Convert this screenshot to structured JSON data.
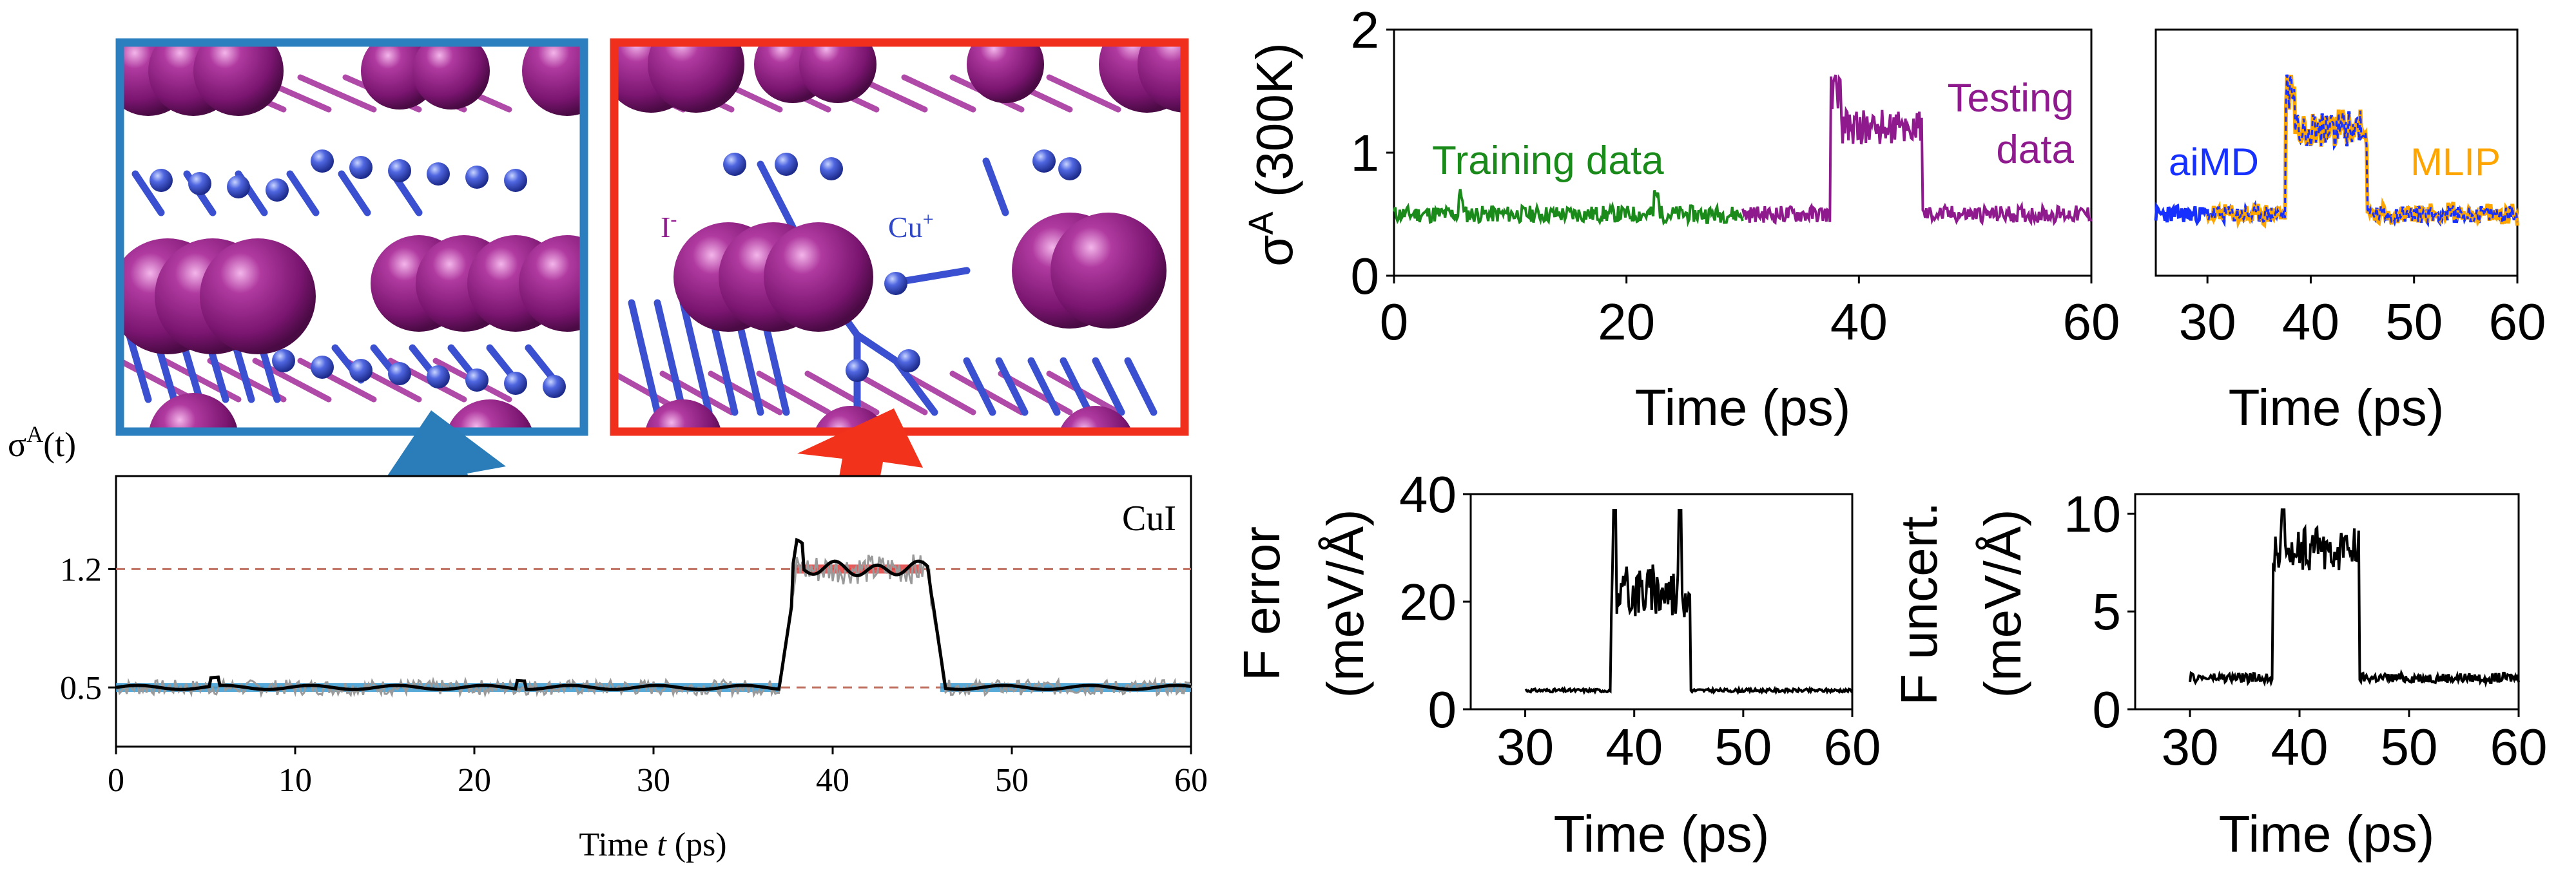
{
  "colors": {
    "blue_frame": "#2b7fbf",
    "red_frame": "#f0301c",
    "blue_arrow": "#2a7db8",
    "red_arrow": "#f2321b",
    "training": "#1a8a1a",
    "testing": "#8e1a8e",
    "aimd": "#1530ff",
    "mlip": "#ffa500",
    "refline": "#c07060",
    "band_blue": "#3a9bd0",
    "band_red": "#e04040",
    "atom_i": "#8a1a7a",
    "atom_cu": "#3048c8"
  },
  "structure_panels": {
    "left": {
      "labels": []
    },
    "right": {
      "label_i": "I",
      "label_i_sup": "-",
      "label_cu": "Cu",
      "label_cu_sup": "+"
    }
  },
  "chart_data": [
    {
      "id": "cui_sigma",
      "type": "line",
      "ylabel_main": "σ",
      "ylabel_sup": "A",
      "ylabel_tail": "(t)",
      "xlabel_pre": "Time ",
      "xlabel_var": "t",
      "xlabel_post": " (ps)",
      "annotation": "CuI",
      "xlim": [
        0,
        60
      ],
      "ylim": [
        0.15,
        1.75
      ],
      "xticks": [
        0,
        10,
        20,
        30,
        40,
        50,
        60
      ],
      "yticks": [
        0.5,
        1.2
      ],
      "ytick_labels": [
        "0.5",
        "1.2"
      ],
      "reference_lines": [
        0.5,
        1.2
      ],
      "segments": [
        {
          "x0": 0,
          "x1": 37,
          "level": 0.5
        },
        {
          "x0": 38,
          "x1": 45,
          "level": 1.2
        },
        {
          "x0": 46,
          "x1": 60,
          "level": 0.5
        }
      ]
    },
    {
      "id": "sigma_300k",
      "type": "line",
      "ylabel": "σ^A (300K)",
      "ylabel_main": "σ",
      "ylabel_sup": "A",
      "ylabel_tail": " (300K)",
      "xlabel": "Time (ps)",
      "xlim": [
        0,
        60
      ],
      "ylim": [
        0,
        2
      ],
      "xticks": [
        0,
        20,
        40,
        60
      ],
      "yticks": [
        0,
        1,
        2
      ],
      "series": [
        {
          "name": "Training data",
          "x_range": [
            0,
            30
          ],
          "level": 0.5
        },
        {
          "name": "Testing data",
          "name_line1": "Testing",
          "name_line2": "data",
          "x_range": [
            30,
            60
          ],
          "plateau": {
            "x0": 37.5,
            "x1": 45.5,
            "level": 1.2
          },
          "level": 0.5
        }
      ]
    },
    {
      "id": "aimd_vs_mlip",
      "type": "line",
      "xlabel": "Time (ps)",
      "xlim": [
        25,
        60
      ],
      "ylim": [
        0,
        2
      ],
      "xticks": [
        30,
        40,
        50,
        60
      ],
      "series": [
        {
          "name": "aiMD",
          "x_range": [
            25,
            60
          ]
        },
        {
          "name": "MLIP",
          "x_range": [
            30,
            60
          ]
        }
      ],
      "plateau": {
        "x0": 37.5,
        "x1": 45.5,
        "level": 1.2
      },
      "baseline": 0.5
    },
    {
      "id": "force_error",
      "type": "line",
      "ylabel_line1": "F error",
      "ylabel_line2": "(meV/Å)",
      "xlabel": "Time (ps)",
      "xlim": [
        25,
        60
      ],
      "ylim": [
        0,
        40
      ],
      "xticks": [
        30,
        40,
        50,
        60
      ],
      "yticks": [
        0,
        20,
        40
      ],
      "x_range": [
        30,
        60
      ],
      "baseline": 3.5,
      "plateau": {
        "x0": 37.8,
        "x1": 45.2,
        "level": 22
      },
      "peaks": [
        [
          38.2,
          37
        ],
        [
          44.2,
          37
        ]
      ]
    },
    {
      "id": "force_uncert",
      "type": "line",
      "ylabel_line1": "F uncert.",
      "ylabel_line2": "(meV/Å)",
      "xlabel": "Time (ps)",
      "xlim": [
        25,
        60
      ],
      "ylim": [
        0,
        11
      ],
      "xticks": [
        30,
        40,
        50,
        60
      ],
      "yticks": [
        0,
        5,
        10
      ],
      "x_range": [
        30,
        60
      ],
      "baseline": 1.6,
      "plateau": {
        "x0": 37.5,
        "x1": 45.5,
        "level": 8.2
      },
      "peaks": [
        [
          38.5,
          10.2
        ]
      ]
    }
  ]
}
